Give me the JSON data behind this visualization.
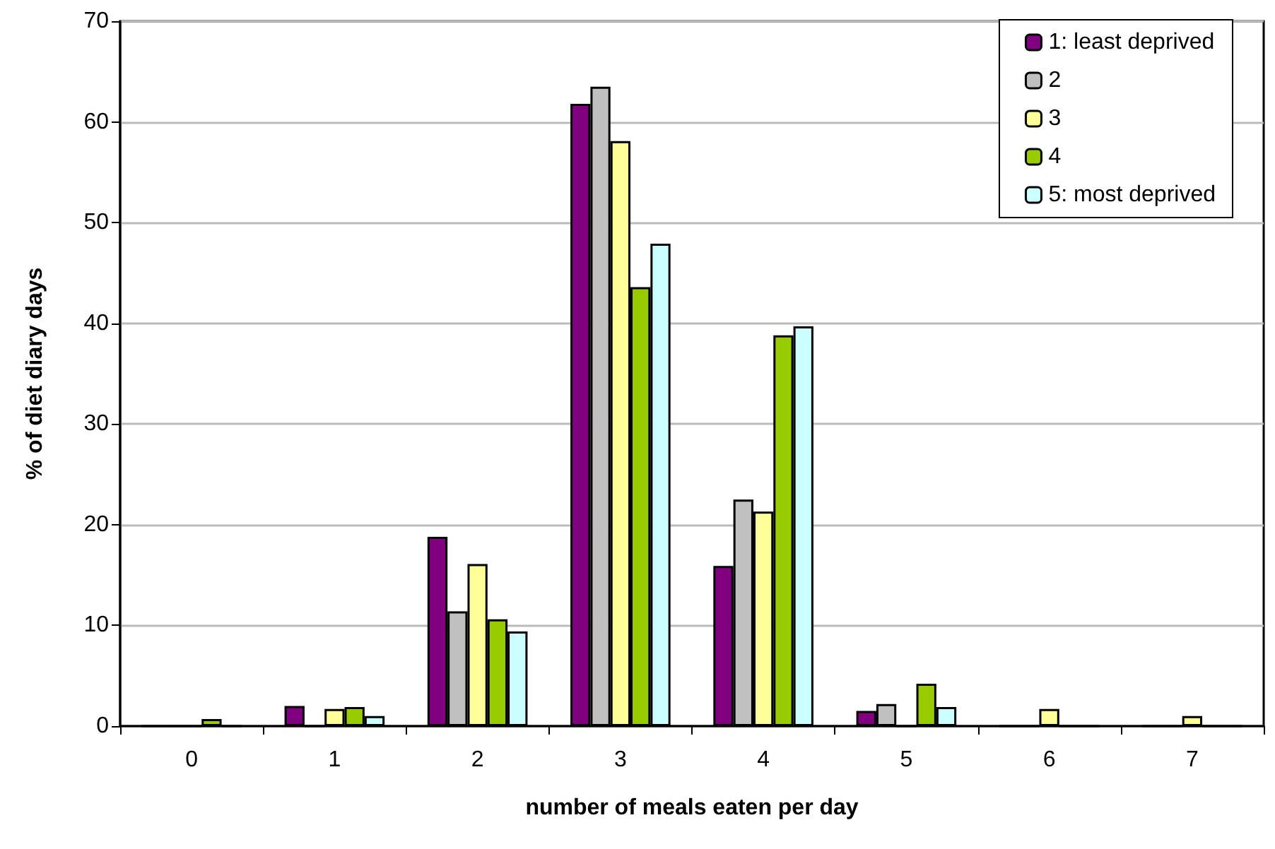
{
  "chart_data": {
    "type": "bar",
    "xlabel": "number of meals eaten per day",
    "ylabel": "% of diet diary days",
    "categories": [
      "0",
      "1",
      "2",
      "3",
      "4",
      "5",
      "6",
      "7"
    ],
    "series": [
      {
        "name": "1: least deprived",
        "color": "#800080",
        "values": [
          0,
          2.0,
          18.8,
          61.8,
          15.9,
          1.5,
          0,
          0
        ]
      },
      {
        "name": "2",
        "color": "#c0c0c0",
        "values": [
          0,
          0,
          11.4,
          63.5,
          22.5,
          2.2,
          0,
          0
        ]
      },
      {
        "name": "3",
        "color": "#ffff99",
        "values": [
          0,
          1.7,
          16.1,
          58.1,
          21.3,
          0,
          1.7,
          1.0
        ]
      },
      {
        "name": "4",
        "color": "#99cc00",
        "values": [
          0.7,
          1.9,
          10.6,
          43.6,
          38.8,
          4.2,
          0,
          0
        ]
      },
      {
        "name": "5: most deprived",
        "color": "#ccffff",
        "values": [
          0,
          1.0,
          9.4,
          47.9,
          39.7,
          1.9,
          0,
          0
        ]
      }
    ],
    "ylim": [
      0,
      70
    ],
    "yticks": [
      0,
      10,
      20,
      30,
      40,
      50,
      60,
      70
    ],
    "grid": "y",
    "legend": "top right"
  }
}
